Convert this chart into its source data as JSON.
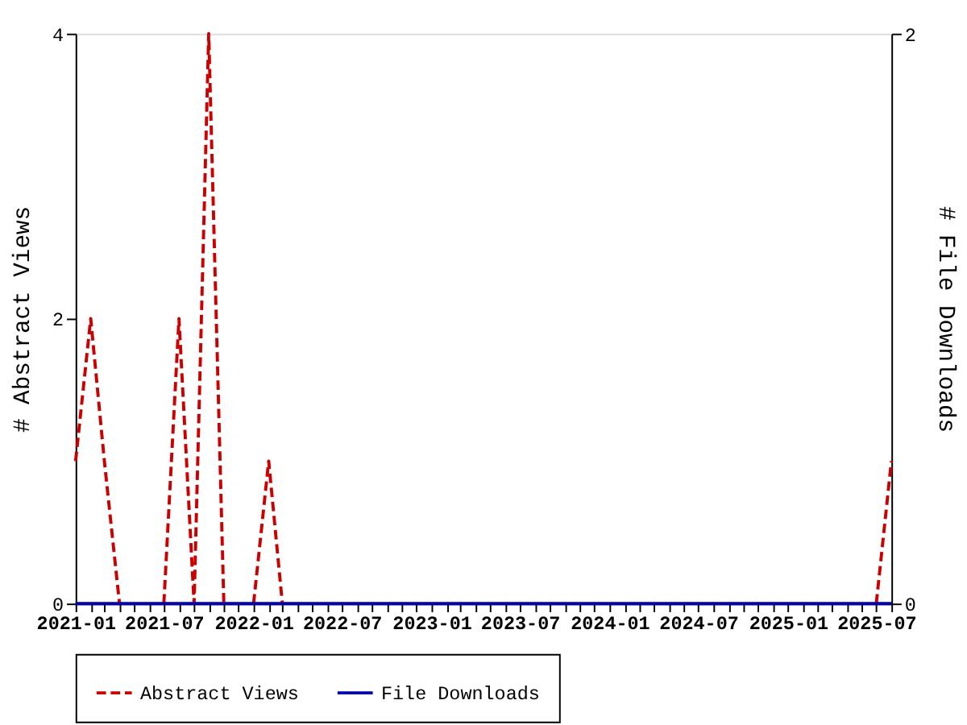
{
  "chart_data": {
    "type": "line",
    "x": [
      "2021-01",
      "2021-02",
      "2021-03",
      "2021-04",
      "2021-05",
      "2021-06",
      "2021-07",
      "2021-08",
      "2021-09",
      "2021-10",
      "2021-11",
      "2021-12",
      "2022-01",
      "2022-02",
      "2022-03",
      "2022-04",
      "2022-05",
      "2022-06",
      "2022-07",
      "2022-08",
      "2022-09",
      "2022-10",
      "2022-11",
      "2022-12",
      "2023-01",
      "2023-02",
      "2023-03",
      "2023-04",
      "2023-05",
      "2023-06",
      "2023-07",
      "2023-08",
      "2023-09",
      "2023-10",
      "2023-11",
      "2023-12",
      "2024-01",
      "2024-02",
      "2024-03",
      "2024-04",
      "2024-05",
      "2024-06",
      "2024-07",
      "2024-08",
      "2024-09",
      "2024-10",
      "2024-11",
      "2024-12",
      "2025-01",
      "2025-02",
      "2025-03",
      "2025-04",
      "2025-05",
      "2025-06",
      "2025-07",
      "2025-08"
    ],
    "series": [
      {
        "name": "Abstract Views",
        "color": "#cc0000",
        "line_style": "dashed",
        "values": [
          1,
          2,
          1,
          0,
          null,
          null,
          0,
          2,
          0,
          4,
          0,
          null,
          0,
          1,
          0,
          null,
          null,
          null,
          null,
          null,
          null,
          null,
          null,
          null,
          null,
          null,
          null,
          null,
          null,
          null,
          null,
          null,
          null,
          null,
          null,
          null,
          null,
          null,
          null,
          null,
          null,
          null,
          null,
          null,
          null,
          null,
          null,
          null,
          null,
          null,
          null,
          null,
          null,
          null,
          0,
          1
        ]
      },
      {
        "name": "File Downloads",
        "color": "#0000aa",
        "line_style": "solid",
        "axis": "y2",
        "values": [
          0,
          0,
          0,
          0,
          0,
          0,
          0,
          0,
          0,
          0,
          0,
          0,
          0,
          0,
          0,
          0,
          0,
          0,
          0,
          0,
          0,
          0,
          0,
          0,
          0,
          0,
          0,
          0,
          0,
          0,
          0,
          0,
          0,
          0,
          0,
          0,
          0,
          0,
          0,
          0,
          0,
          0,
          0,
          0,
          0,
          0,
          0,
          0,
          0,
          0,
          0,
          0,
          0,
          0,
          0,
          0
        ]
      }
    ],
    "ylabel": "# Abstract Views",
    "y2label": "# File Downloads",
    "xlim": [
      "2021-01",
      "2025-08"
    ],
    "xticks": [
      {
        "value": "2021-01",
        "label": "2021-01"
      },
      {
        "value": "2021-02",
        "label": null
      },
      {
        "value": "2021-03",
        "label": null
      },
      {
        "value": "2021-04",
        "label": null
      },
      {
        "value": "2021-05",
        "label": null
      },
      {
        "value": "2021-06",
        "label": null
      },
      {
        "value": "2021-07",
        "label": "2021-07"
      },
      {
        "value": "2021-08",
        "label": null
      },
      {
        "value": "2021-09",
        "label": null
      },
      {
        "value": "2021-10",
        "label": null
      },
      {
        "value": "2021-11",
        "label": null
      },
      {
        "value": "2021-12",
        "label": null
      },
      {
        "value": "2022-01",
        "label": "2022-01"
      },
      {
        "value": "2022-02",
        "label": null
      },
      {
        "value": "2022-03",
        "label": null
      },
      {
        "value": "2022-04",
        "label": null
      },
      {
        "value": "2022-05",
        "label": null
      },
      {
        "value": "2022-06",
        "label": null
      },
      {
        "value": "2022-07",
        "label": "2022-07"
      },
      {
        "value": "2022-08",
        "label": null
      },
      {
        "value": "2022-09",
        "label": null
      },
      {
        "value": "2022-10",
        "label": null
      },
      {
        "value": "2022-11",
        "label": null
      },
      {
        "value": "2022-12",
        "label": null
      },
      {
        "value": "2023-01",
        "label": "2023-01"
      },
      {
        "value": "2023-02",
        "label": null
      },
      {
        "value": "2023-03",
        "label": null
      },
      {
        "value": "2023-04",
        "label": null
      },
      {
        "value": "2023-05",
        "label": null
      },
      {
        "value": "2023-06",
        "label": null
      },
      {
        "value": "2023-07",
        "label": "2023-07"
      },
      {
        "value": "2023-08",
        "label": null
      },
      {
        "value": "2023-09",
        "label": null
      },
      {
        "value": "2023-10",
        "label": null
      },
      {
        "value": "2023-11",
        "label": null
      },
      {
        "value": "2023-12",
        "label": null
      },
      {
        "value": "2024-01",
        "label": "2024-01"
      },
      {
        "value": "2024-02",
        "label": null
      },
      {
        "value": "2024-03",
        "label": null
      },
      {
        "value": "2024-04",
        "label": null
      },
      {
        "value": "2024-05",
        "label": null
      },
      {
        "value": "2024-06",
        "label": null
      },
      {
        "value": "2024-07",
        "label": "2024-07"
      },
      {
        "value": "2024-08",
        "label": null
      },
      {
        "value": "2024-09",
        "label": null
      },
      {
        "value": "2024-10",
        "label": null
      },
      {
        "value": "2024-11",
        "label": null
      },
      {
        "value": "2024-12",
        "label": null
      },
      {
        "value": "2025-01",
        "label": "2025-01"
      },
      {
        "value": "2025-02",
        "label": null
      },
      {
        "value": "2025-03",
        "label": null
      },
      {
        "value": "2025-04",
        "label": null
      },
      {
        "value": "2025-05",
        "label": null
      },
      {
        "value": "2025-06",
        "label": null
      },
      {
        "value": "2025-07",
        "label": "2025-07"
      },
      {
        "value": "2025-08",
        "label": null
      }
    ],
    "ylim": [
      0,
      4
    ],
    "yticks": [
      0,
      2,
      4
    ],
    "y2lim": [
      0,
      2
    ],
    "y2ticks": [
      0,
      2
    ],
    "grid": false,
    "legend": "bottom",
    "marker": "none"
  }
}
